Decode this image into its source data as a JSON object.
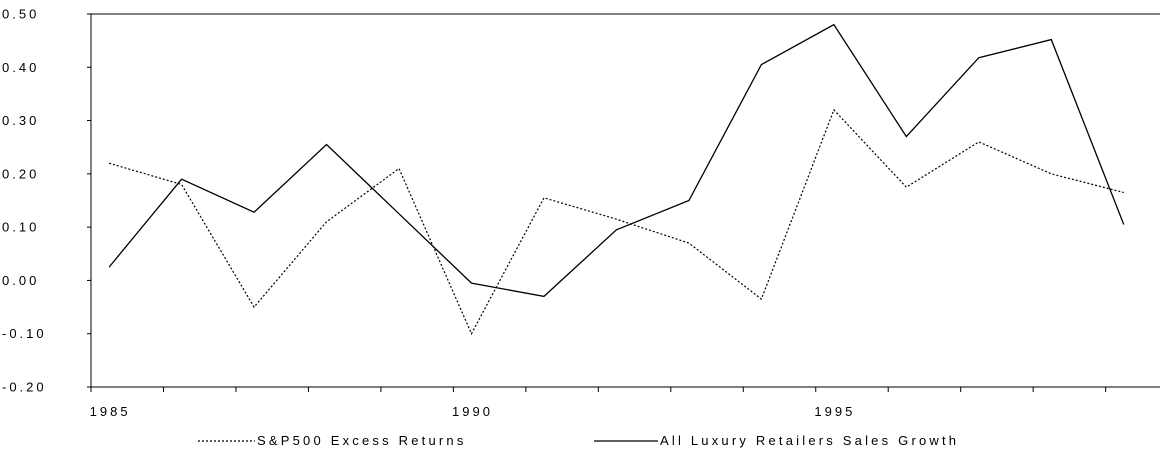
{
  "chart_data": {
    "type": "line",
    "x": [
      1985,
      1986,
      1987,
      1988,
      1989,
      1990,
      1991,
      1992,
      1993,
      1994,
      1995,
      1996,
      1997,
      1998,
      1999
    ],
    "series": [
      {
        "name": "S&P500 Excess Returns",
        "style": "dotted",
        "color": "#000000",
        "values": [
          0.22,
          0.18,
          -0.05,
          0.11,
          0.21,
          -0.1,
          0.155,
          0.115,
          0.07,
          -0.035,
          0.32,
          0.175,
          0.26,
          0.2,
          0.165
        ]
      },
      {
        "name": "All Luxury Retailers Sales Growth",
        "style": "solid",
        "color": "#000000",
        "values": [
          0.025,
          0.19,
          0.128,
          0.255,
          0.125,
          -0.005,
          -0.03,
          0.095,
          0.15,
          0.405,
          0.48,
          0.27,
          0.418,
          0.452,
          0.105
        ]
      }
    ],
    "ylim": [
      -0.2,
      0.5
    ],
    "yticks": [
      0.5,
      0.4,
      0.3,
      0.2,
      0.1,
      0.0,
      -0.1,
      -0.2
    ],
    "ytick_labels": [
      "0.50",
      "0.40",
      "0.30",
      "0.20",
      "0.10",
      "0.00",
      "-0.10",
      "-0.20"
    ],
    "xtick_labels": [
      {
        "year": 1985,
        "label": "1985"
      },
      {
        "year": 1990,
        "label": "1990"
      },
      {
        "year": 1995,
        "label": "1995"
      }
    ],
    "grid": false,
    "legend_position": "bottom-center",
    "title": "",
    "xlabel": "",
    "ylabel": ""
  }
}
